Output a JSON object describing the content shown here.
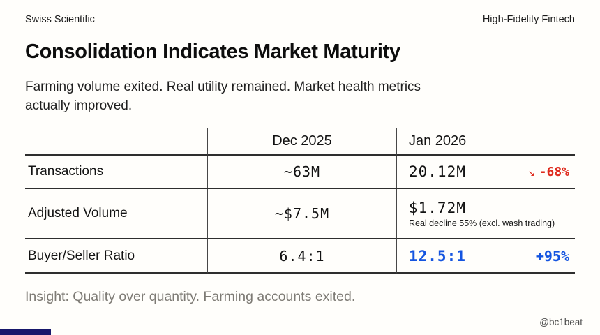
{
  "page": {
    "brand_left": "Swiss Scientific",
    "brand_right": "High-Fidelity Fintech",
    "title": "Consolidation Indicates Market Maturity",
    "subtitle": "Farming volume exited. Real utility remained. Market health metrics actually improved.",
    "insight": "Insight: Quality over quantity. Farming accounts exited.",
    "handle": "@bc1beat"
  },
  "colors": {
    "negative_red": "#df2b1e",
    "positive_blue": "#1454e0",
    "rule_dark": "#2e2e2e",
    "insight_gray": "#7d7a74",
    "corner_bar_navy": "#17176b"
  },
  "chart_data": {
    "type": "table",
    "title": "Consolidation Indicates Market Maturity",
    "columns": [
      "",
      "Dec 2025",
      "Jan 2026"
    ],
    "rows": [
      {
        "label": "Transactions",
        "dec_2025": "~63M",
        "jan_2026": "20.12M",
        "change": "-68%",
        "change_direction": "down",
        "change_arrow": "↘"
      },
      {
        "label": "Adjusted Volume",
        "dec_2025": "~$7.5M",
        "jan_2026": "$1.72M",
        "note": "Real decline 55% (excl. wash trading)"
      },
      {
        "label": "Buyer/Seller Ratio",
        "dec_2025": "6.4:1",
        "jan_2026": "12.5:1",
        "change": "+95%",
        "change_direction": "up"
      }
    ]
  }
}
